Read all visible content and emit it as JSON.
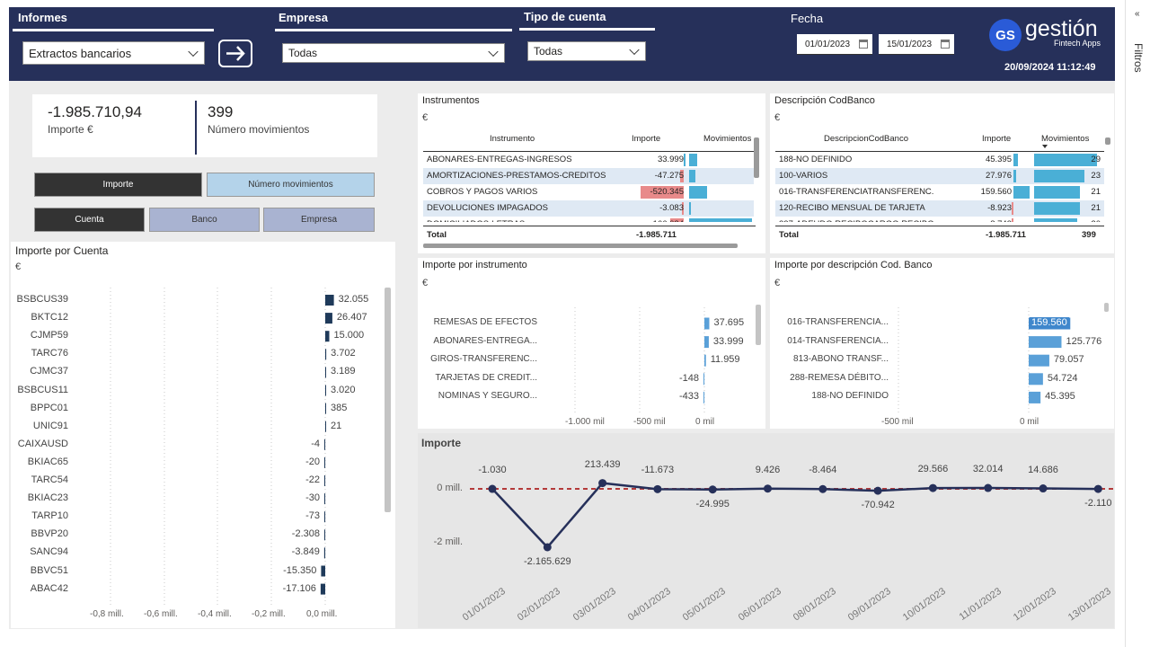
{
  "header": {
    "informes_label": "Informes",
    "informes_value": "Extractos bancarios",
    "empresa_label": "Empresa",
    "empresa_value": "Todas",
    "tipo_label": "Tipo de cuenta",
    "tipo_value": "Todas",
    "fecha_label": "Fecha",
    "fecha_desde": "01/01/2023",
    "fecha_hasta": "15/01/2023",
    "logo_mark": "GS",
    "logo_name": "gestión",
    "logo_sub": "Fintech Apps",
    "timestamp": "20/09/2024 11:12:49"
  },
  "filters_pane_label": "Filtros",
  "filters_pane_collapse": "«",
  "kpi": {
    "importe_value": "-1.985.710,94",
    "importe_label": "Importe €",
    "movs_value": "399",
    "movs_label": "Número movimientos"
  },
  "toggles": {
    "measure": [
      "Importe",
      "Número movimientos"
    ],
    "dimension": [
      "Cuenta",
      "Banco",
      "Empresa"
    ]
  },
  "instrumentos": {
    "title": "Instrumentos",
    "unit": "€",
    "columns": [
      "Instrumento",
      "Importe",
      "Movimientos"
    ],
    "rows": [
      {
        "name": "ABONARES-ENTREGAS-INGRESOS",
        "importe": "33.999",
        "imp": 33999,
        "mov": 4
      },
      {
        "name": "AMORTIZACIONES-PRESTAMOS-CREDITOS",
        "importe": "-47.275",
        "imp": -47275,
        "mov": 3
      },
      {
        "name": "COBROS Y PAGOS VARIOS",
        "importe": "-520.345",
        "imp": -520345,
        "mov": 9
      },
      {
        "name": "DEVOLUCIONES IMPAGADOS",
        "importe": "-3.083",
        "imp": -3083,
        "mov": 1
      },
      {
        "name": "DOMICILIADOS-LETRAS",
        "importe": "-166.024",
        "imp": -166024,
        "mov": 32
      }
    ],
    "total_label": "Total",
    "total_importe": "-1.985.711"
  },
  "codbanco": {
    "title": "Descripción CodBanco",
    "unit": "€",
    "columns": [
      "DescripcionCodBanco",
      "Importe",
      "Movimientos"
    ],
    "rows": [
      {
        "name": "188-NO DEFINIDO",
        "importe": "45.395",
        "imp": 45395,
        "mov": 29
      },
      {
        "name": "100-VARIOS",
        "importe": "27.976",
        "imp": 27976,
        "mov": 23
      },
      {
        "name": "016-TRANSFERENCIATRANSFERENC.",
        "importe": "159.560",
        "imp": 159560,
        "mov": 21
      },
      {
        "name": "120-RECIBO MENSUAL DE TARJETA",
        "importe": "-8.923",
        "imp": -8923,
        "mov": 21
      },
      {
        "name": "337-ADEUDO RECIBOCARGO RECIBO",
        "importe": "-8.743",
        "imp": -8743,
        "mov": 20
      }
    ],
    "total_label": "Total",
    "total_importe": "-1.985.711",
    "total_movs": "399"
  },
  "chart_data": [
    {
      "type": "bar",
      "title": "Importe por Cuenta",
      "unit": "€",
      "orientation": "horizontal",
      "categories": [
        "BSBCUS39",
        "BKTC12",
        "CJMP59",
        "TARC76",
        "CJMC37",
        "BSBCUS11",
        "BPPC01",
        "UNIC91",
        "CAIXAUSD",
        "BKIAC65",
        "TARC54",
        "BKIAC23",
        "TARP10",
        "BBVP20",
        "SANC94",
        "BBVC51",
        "ABAC42"
      ],
      "values": [
        32055,
        26407,
        15000,
        3702,
        3189,
        3020,
        385,
        21,
        -4,
        -20,
        -22,
        -30,
        -73,
        -2308,
        -3849,
        -15350,
        -17106
      ],
      "labels": [
        "32.055",
        "26.407",
        "15.000",
        "3.702",
        "3.189",
        "3.020",
        "385",
        "21",
        "-4",
        "-20",
        "-22",
        "-30",
        "-73",
        "-2.308",
        "-3.849",
        "-15.350",
        "-17.106"
      ],
      "xticks": [
        "-0,8 mill.",
        "-0,6 mill.",
        "-0,4 mill.",
        "-0,2 mill.",
        "0,0 mill."
      ],
      "xlim": [
        -0.8,
        0.0
      ],
      "xtick_values": [
        -0.8,
        -0.6,
        -0.4,
        -0.2,
        0.0
      ]
    },
    {
      "type": "bar",
      "title": "Importe por instrumento",
      "unit": "€",
      "orientation": "horizontal",
      "categories": [
        "REMESAS DE EFECTOS",
        "ABONARES-ENTREGA...",
        "GIROS-TRANSFERENC...",
        "TARJETAS DE CREDIT...",
        "NOMINAS Y SEGURO..."
      ],
      "values": [
        37695,
        33999,
        11959,
        -148,
        -433
      ],
      "labels": [
        "37.695",
        "33.999",
        "11.959",
        "-148",
        "-433"
      ],
      "xticks": [
        "-1.000 mil",
        "-500 mil",
        "0 mil"
      ],
      "xtick_values": [
        -1000000,
        -500000,
        0
      ]
    },
    {
      "type": "bar",
      "title": "Importe por descripción Cod. Banco",
      "unit": "€",
      "orientation": "horizontal",
      "categories": [
        "016-TRANSFERENCIA...",
        "014-TRANSFERENCIA...",
        "813-ABONO TRANSF...",
        "288-REMESA DÉBITO...",
        "188-NO DEFINIDO"
      ],
      "values": [
        159560,
        125776,
        79057,
        54724,
        45395
      ],
      "labels": [
        "159.560",
        "125.776",
        "79.057",
        "54.724",
        "45.395"
      ],
      "xticks": [
        "-500 mil",
        "0 mil"
      ],
      "xtick_values": [
        -500000,
        0
      ]
    },
    {
      "type": "line",
      "title": "Importe",
      "x": [
        "01/01/2023",
        "02/01/2023",
        "03/01/2023",
        "04/01/2023",
        "05/01/2023",
        "06/01/2023",
        "08/01/2023",
        "09/01/2023",
        "10/01/2023",
        "11/01/2023",
        "12/01/2023",
        "13/01/2023"
      ],
      "values": [
        -1030,
        -2165629,
        213439,
        -11673,
        -24995,
        9426,
        -8464,
        -70942,
        29566,
        32014,
        14686,
        -2110
      ],
      "labels": [
        "-1.030",
        "-2.165.629",
        "213.439",
        "-11.673",
        "-24.995",
        "9.426",
        "-8.464",
        "-70.942",
        "29.566",
        "32.014",
        "14.686",
        "-2.110"
      ],
      "yticks": [
        "0 mill.",
        "-2 mill."
      ],
      "ytick_values": [
        0,
        -2000000
      ],
      "colors": {
        "line": "#26305a",
        "reference": "#b43a3a"
      }
    }
  ],
  "colors": {
    "header": "#26305a",
    "bar_dark": "#1f3a5a",
    "bar_blue": "#4aafd6",
    "bar_light": "#5aa0d8",
    "neg_red": "#e88a8a"
  }
}
